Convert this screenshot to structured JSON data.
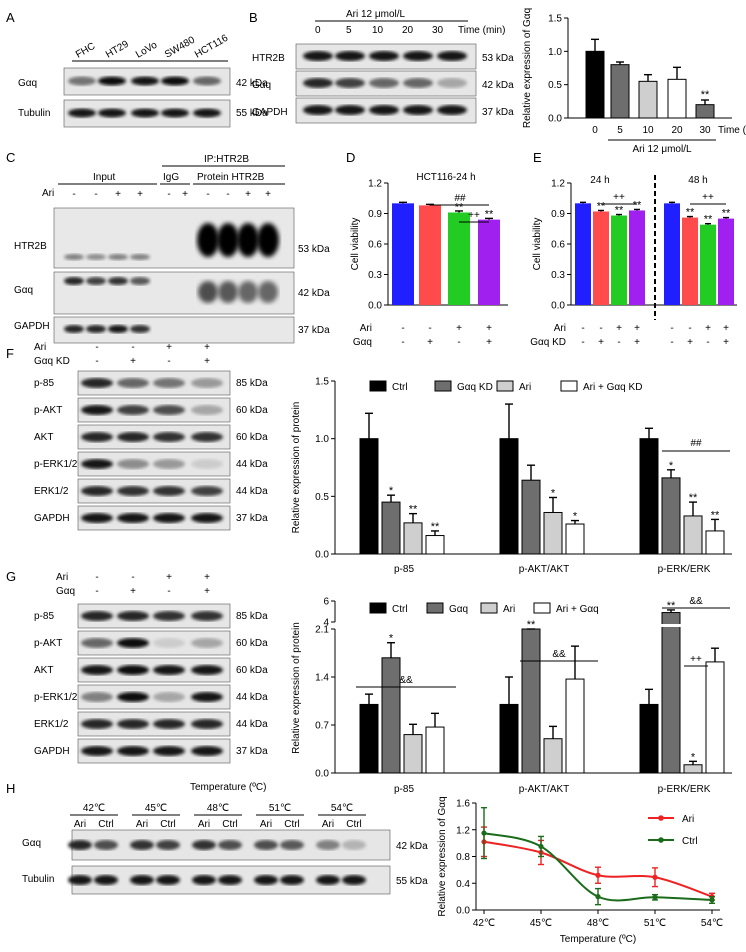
{
  "panels": {
    "A": {
      "letter": "A",
      "lanes": [
        "FHC",
        "HT29",
        "LoVo",
        "SW480",
        "HCT116"
      ],
      "rows": [
        {
          "name": "Gαq",
          "kda": "42 kDa",
          "intensity": [
            0.55,
            0.95,
            0.9,
            0.95,
            0.6
          ]
        },
        {
          "name": "Tubulin",
          "kda": "55 kDa",
          "intensity": [
            0.9,
            0.9,
            0.9,
            0.9,
            0.9
          ]
        }
      ]
    },
    "B": {
      "letter": "B",
      "treatment": "Ari 12 μmol/L",
      "lanes": [
        "0",
        "5",
        "10",
        "20",
        "30"
      ],
      "time_unit": "Time (min)",
      "rows": [
        {
          "name": "HTR2B",
          "kda": "53 kDa",
          "intensity": [
            0.9,
            0.9,
            0.9,
            0.9,
            0.9
          ]
        },
        {
          "name": "Gαq",
          "kda": "42 kDa",
          "intensity": [
            0.85,
            0.75,
            0.6,
            0.6,
            0.35
          ]
        },
        {
          "name": "GAPDH",
          "kda": "37 kDa",
          "intensity": [
            0.9,
            0.9,
            0.9,
            0.9,
            0.9
          ]
        }
      ]
    },
    "C": {
      "letter": "C",
      "ip_label": "IP:HTR2B",
      "groups": [
        "Input",
        "IgG",
        "Protein HTR2B"
      ],
      "ari_label": "Ari",
      "ari_signs": [
        "-",
        "-",
        "+",
        "+",
        "-",
        "+",
        "-",
        "-",
        "+",
        "+"
      ],
      "rows": [
        {
          "name": "HTR2B",
          "kda": "53 kDa"
        },
        {
          "name": "Gαq",
          "kda": "42 kDa"
        },
        {
          "name": "GAPDH",
          "kda": "37 kDa"
        }
      ]
    },
    "D": {
      "letter": "D",
      "title": "HCT116-24 h"
    },
    "E": {
      "letter": "E",
      "t1": "24 h",
      "t2": "48 h"
    },
    "F": {
      "letter": "F",
      "rows": [
        {
          "name": "p-85",
          "kda": "85 kDa"
        },
        {
          "name": "p-AKT",
          "kda": "60 kDa"
        },
        {
          "name": "AKT",
          "kda": "60 kDa"
        },
        {
          "name": "p-ERK1/2",
          "kda": "44 kDa"
        },
        {
          "name": "ERK1/2",
          "kda": "44 kDa"
        },
        {
          "name": "GAPDH",
          "kda": "37 kDa"
        }
      ],
      "cond_labels": [
        "Ari",
        "Gαq KD"
      ],
      "cond_signs": [
        [
          "-",
          "-",
          "+",
          "+"
        ],
        [
          "-",
          "+",
          "-",
          "+"
        ]
      ]
    },
    "G": {
      "letter": "G",
      "rows": [
        {
          "name": "p-85",
          "kda": "85 kDa"
        },
        {
          "name": "p-AKT",
          "kda": "60 kDa"
        },
        {
          "name": "AKT",
          "kda": "60 kDa"
        },
        {
          "name": "p-ERK1/2",
          "kda": "44 kDa"
        },
        {
          "name": "ERK1/2",
          "kda": "44 kDa"
        },
        {
          "name": "GAPDH",
          "kda": "37 kDa"
        }
      ],
      "cond_labels": [
        "Ari",
        "Gαq"
      ],
      "cond_signs": [
        [
          "-",
          "-",
          "+",
          "+"
        ],
        [
          "-",
          "+",
          "-",
          "+"
        ]
      ]
    },
    "H": {
      "letter": "H",
      "temp_title": "Temperature (ºC)",
      "temps": [
        "42℃",
        "45℃",
        "48℃",
        "51℃",
        "54℃"
      ],
      "sub_lanes": [
        "Ari",
        "Ctrl"
      ],
      "rows": [
        {
          "name": "Gαq",
          "kda": "42 kDa"
        },
        {
          "name": "Tubulin",
          "kda": "55 kDa"
        }
      ]
    }
  },
  "colors": {
    "blue": "#1f1fff",
    "red": "#ff4b4b",
    "green": "#22cc22",
    "purple": "#a020f0",
    "black": "#000000",
    "darkgray": "#6e6e6e",
    "lightgray": "#cfcfcf",
    "white": "#ffffff",
    "line_red": "#ee2222",
    "line_green": "#1a6b1a"
  },
  "chart_data": [
    {
      "id": "B_bar",
      "type": "bar",
      "categories": [
        "0",
        "5",
        "10",
        "20",
        "30"
      ],
      "values": [
        1.0,
        0.8,
        0.55,
        0.58,
        0.2
      ],
      "errors": [
        0.18,
        0.04,
        0.1,
        0.18,
        0.07
      ],
      "colors": [
        "#000000",
        "#6e6e6e",
        "#cfcfcf",
        "#ffffff",
        "#6e6e6e"
      ],
      "sig": [
        "",
        "",
        "",
        "",
        "**"
      ],
      "ylabel": "Relative expression of Gαq",
      "xlabel": "Time (min)",
      "subtitle": "Ari 12 μmol/L",
      "ylim": [
        0,
        1.5
      ],
      "yticks": [
        "0.0",
        "0.5",
        "1.0",
        "1.5"
      ]
    },
    {
      "id": "D_bar",
      "type": "bar",
      "categories": [
        "1",
        "2",
        "3",
        "4"
      ],
      "values": [
        1.0,
        0.98,
        0.91,
        0.84
      ],
      "errors": [
        0.01,
        0.01,
        0.015,
        0.012
      ],
      "colors": [
        "#1f1fff",
        "#ff4b4b",
        "#22cc22",
        "#a020f0"
      ],
      "sig": [
        "",
        "",
        "**",
        "**"
      ],
      "ylabel": "Cell viability",
      "ylim": [
        0,
        1.2
      ],
      "yticks": [
        "0.0",
        "0.3",
        "0.6",
        "0.9",
        "1.2"
      ],
      "row_labels": [
        "Ari",
        "Gαq"
      ],
      "row_signs": [
        [
          "-",
          "-",
          "+",
          "+"
        ],
        [
          "-",
          "+",
          "-",
          "+"
        ]
      ],
      "brackets": [
        "##",
        "++"
      ]
    },
    {
      "id": "E_bar",
      "type": "bar",
      "categories": [
        "24h-1",
        "24h-2",
        "24h-3",
        "24h-4",
        "48h-1",
        "48h-2",
        "48h-3",
        "48h-4"
      ],
      "values": [
        1.0,
        0.92,
        0.88,
        0.93,
        1.0,
        0.86,
        0.79,
        0.85
      ],
      "errors": [
        0.01,
        0.01,
        0.01,
        0.01,
        0.01,
        0.01,
        0.01,
        0.01
      ],
      "colors": [
        "#1f1fff",
        "#ff4b4b",
        "#22cc22",
        "#a020f0",
        "#1f1fff",
        "#ff4b4b",
        "#22cc22",
        "#a020f0"
      ],
      "sig": [
        "",
        "**",
        "**",
        "**",
        "",
        "**",
        "**",
        "**"
      ],
      "ylabel": "Cell viability",
      "ylim": [
        0,
        1.2
      ],
      "yticks": [
        "0.0",
        "0.3",
        "0.6",
        "0.9",
        "1.2"
      ],
      "row_labels": [
        "Ari",
        "Gαq KD"
      ],
      "row_signs": [
        [
          "-",
          "-",
          "+",
          "+",
          "-",
          "-",
          "+",
          "+"
        ],
        [
          "-",
          "+",
          "-",
          "+",
          "-",
          "+",
          "-",
          "+"
        ]
      ],
      "brackets": [
        "++",
        "++"
      ]
    },
    {
      "id": "F_bar",
      "type": "bar",
      "categories": [
        "p-85",
        "p-AKT/AKT",
        "p-ERK/ERK"
      ],
      "series": [
        {
          "name": "Ctrl",
          "color": "#000000",
          "values": [
            1.0,
            1.0,
            1.0
          ],
          "errors": [
            0.22,
            0.3,
            0.09
          ],
          "sig": [
            "",
            "",
            ""
          ]
        },
        {
          "name": "Gαq KD",
          "color": "#6e6e6e",
          "values": [
            0.45,
            0.64,
            0.66
          ],
          "errors": [
            0.06,
            0.13,
            0.07
          ],
          "sig": [
            "*",
            "",
            "*"
          ]
        },
        {
          "name": "Ari",
          "color": "#cfcfcf",
          "values": [
            0.27,
            0.36,
            0.33
          ],
          "errors": [
            0.08,
            0.13,
            0.12
          ],
          "sig": [
            "**",
            "*",
            "**"
          ]
        },
        {
          "name": "Ari + Gαq KD",
          "color": "#ffffff",
          "values": [
            0.16,
            0.26,
            0.2
          ],
          "errors": [
            0.04,
            0.03,
            0.1
          ],
          "sig": [
            "**",
            "*",
            "**"
          ]
        }
      ],
      "ylabel": "Relative expression of protein",
      "ylim": [
        0,
        1.5
      ],
      "yticks": [
        "0.0",
        "0.5",
        "1.0",
        "1.5"
      ],
      "bracket": "##"
    },
    {
      "id": "G_bar",
      "type": "bar",
      "categories": [
        "p-85",
        "p-AKT/AKT",
        "p-ERK/ERK"
      ],
      "series": [
        {
          "name": "Ctrl",
          "color": "#000000",
          "values": [
            1.0,
            1.0,
            1.0
          ],
          "errors": [
            0.15,
            0.4,
            0.22
          ],
          "sig": [
            "",
            "",
            ""
          ]
        },
        {
          "name": "Gαq",
          "color": "#6e6e6e",
          "values": [
            1.68,
            2.6,
            4.9
          ],
          "errors": [
            0.22,
            0.2,
            0.25
          ],
          "sig": [
            "*",
            "**",
            "**"
          ]
        },
        {
          "name": "Ari",
          "color": "#cfcfcf",
          "values": [
            0.56,
            0.5,
            0.12
          ],
          "errors": [
            0.15,
            0.18,
            0.05
          ],
          "sig": [
            "",
            "",
            "*"
          ]
        },
        {
          "name": "Ari + Gαq",
          "color": "#ffffff",
          "values": [
            0.67,
            1.37,
            1.62
          ],
          "errors": [
            0.2,
            0.48,
            0.2
          ],
          "sig": [
            "",
            "",
            ""
          ]
        }
      ],
      "ylabel": "Relative expression of protein",
      "yticks_low": [
        "0.0",
        "0.7",
        "1.4",
        "2.1"
      ],
      "yticks_high": [
        "4",
        "6"
      ],
      "brackets": [
        "&&",
        "&&",
        "&&",
        "++"
      ]
    },
    {
      "id": "H_line",
      "type": "line",
      "x": [
        "42℃",
        "45℃",
        "48℃",
        "51℃",
        "54℃"
      ],
      "series": [
        {
          "name": "Ari",
          "color": "#ee2222",
          "values": [
            1.02,
            0.86,
            0.52,
            0.49,
            0.2
          ],
          "errors": [
            0.22,
            0.18,
            0.12,
            0.14,
            0.05
          ]
        },
        {
          "name": "Ctrl",
          "color": "#1a6b1a",
          "values": [
            1.15,
            0.95,
            0.2,
            0.19,
            0.15
          ],
          "errors": [
            0.38,
            0.15,
            0.12,
            0.04,
            0.05
          ]
        }
      ],
      "ylabel": "Relative expression of Gαq",
      "xlabel": "Temperature (ºC)",
      "ylim": [
        0,
        1.6
      ],
      "yticks": [
        "0.0",
        "0.4",
        "0.8",
        "1.2",
        "1.6"
      ]
    }
  ]
}
